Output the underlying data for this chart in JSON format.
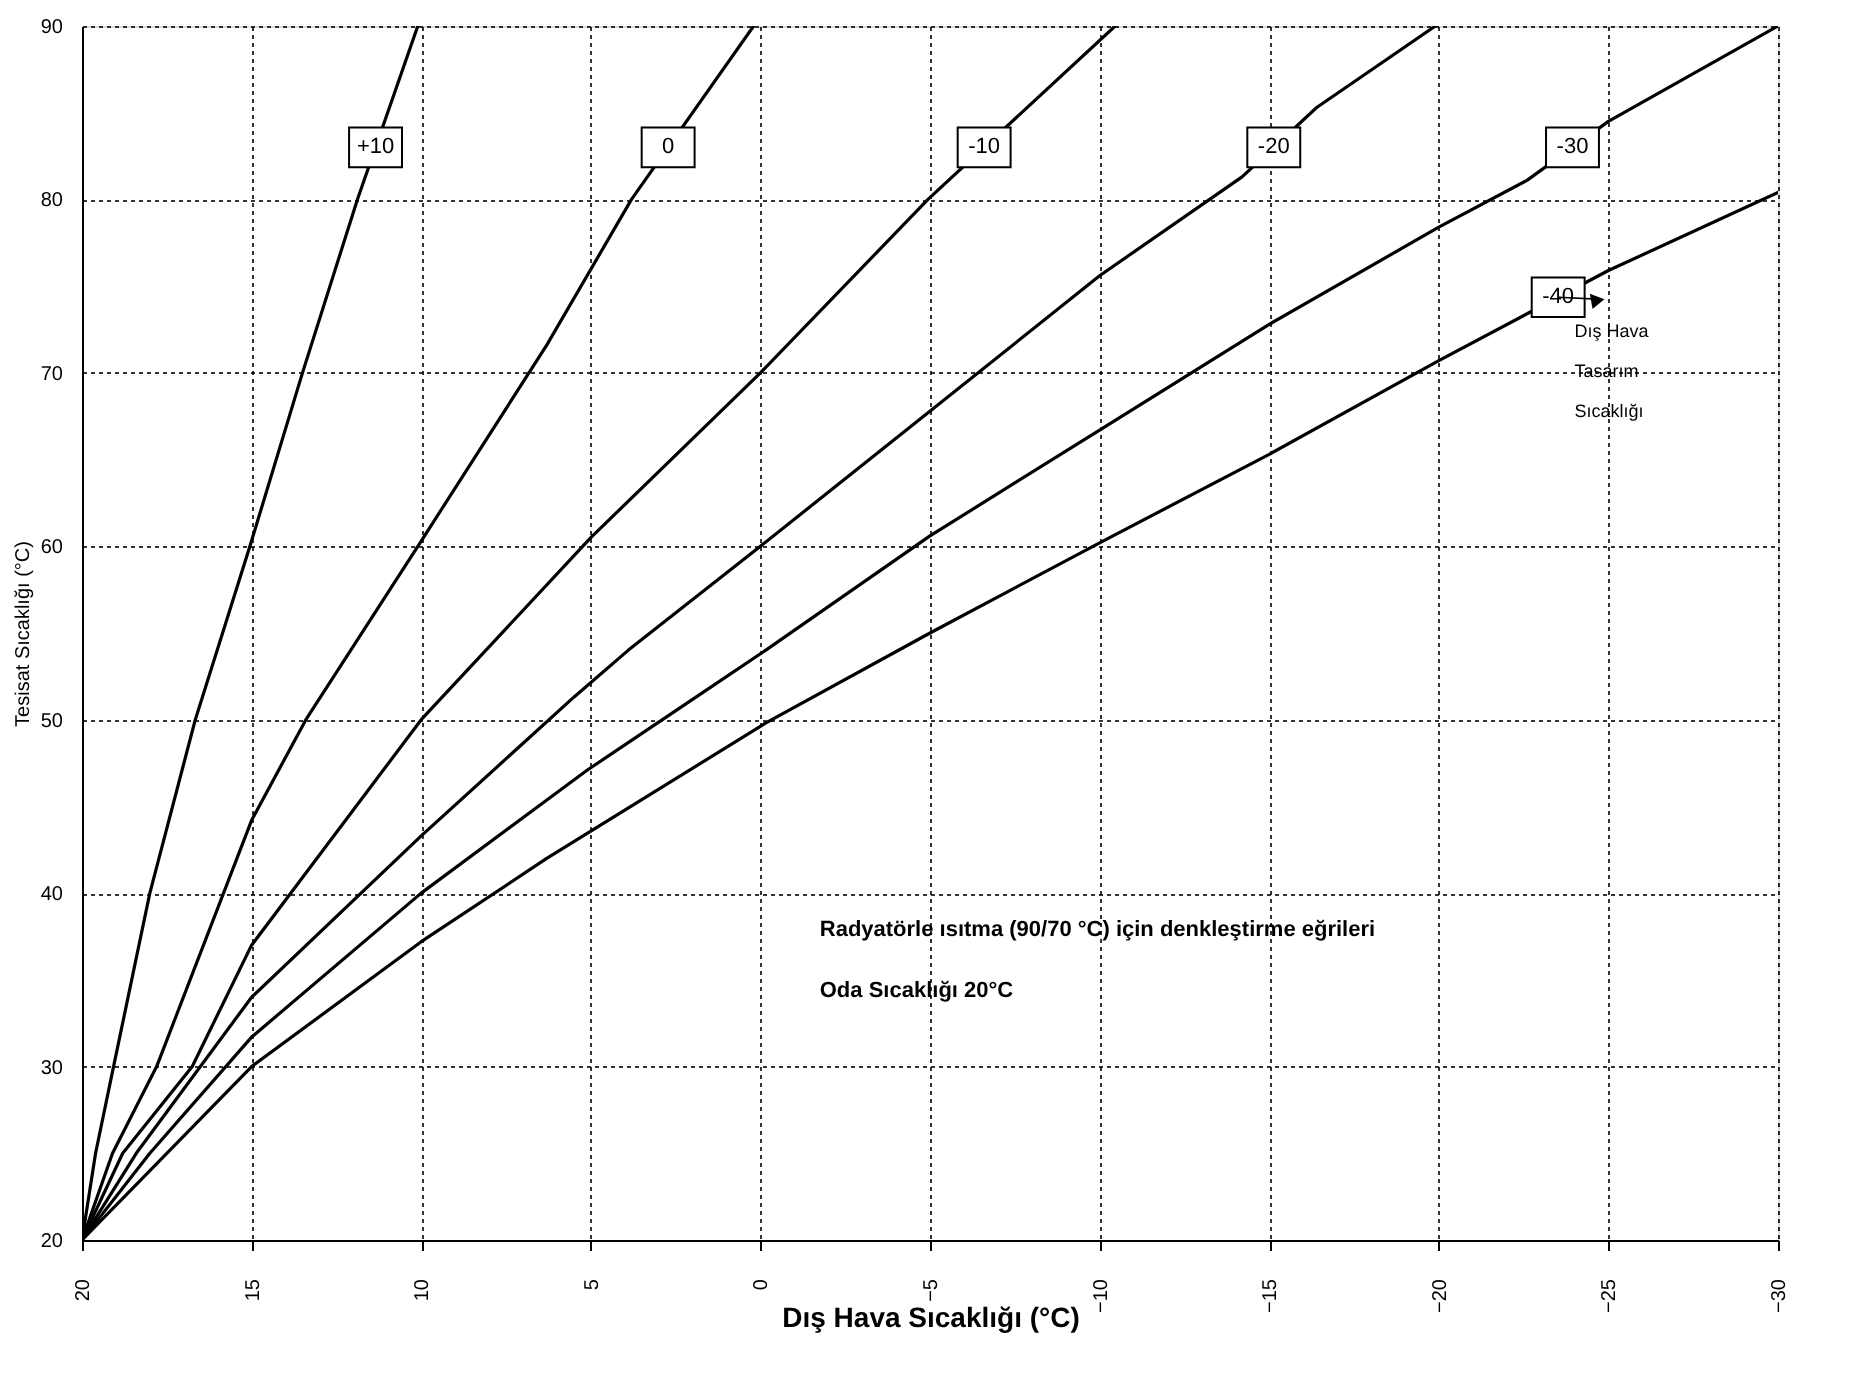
{
  "chart_data": {
    "type": "line",
    "xlabel": "Dış Hava Sıcaklığı (°C)",
    "ylabel": "Tesisat Sıcaklığı (°C)",
    "xlim": [
      20,
      -30
    ],
    "xticks": [
      20,
      15,
      10,
      5,
      0,
      -5,
      -10,
      -15,
      -20,
      -25,
      -30
    ],
    "ylim": [
      20,
      90
    ],
    "yticks": [
      20,
      30,
      40,
      50,
      60,
      70,
      80,
      90
    ],
    "grid": true,
    "marker": "none",
    "line_style": "solid",
    "series": [
      {
        "name": "+10",
        "color": "#000000",
        "x": [
          20,
          19.6,
          19.07,
          18.0,
          16.66,
          15.05,
          13.5,
          11.88,
          10.1
        ],
        "values": [
          20,
          25,
          30,
          40,
          50,
          60,
          70,
          80,
          90
        ]
      },
      {
        "name": "0",
        "color": "#000000",
        "x": [
          20,
          19.1,
          17.8,
          15,
          13.4,
          10,
          6.3,
          3.8,
          0.2
        ],
        "values": [
          20,
          25,
          30,
          44.2,
          50,
          60.3,
          71.6,
          80,
          90
        ]
      },
      {
        "name": "-10",
        "color": "#000000",
        "x": [
          20,
          18.8,
          16.75,
          15,
          10,
          5,
          0,
          -4.94,
          -10.46
        ],
        "values": [
          20,
          25,
          30,
          37,
          50,
          60.5,
          70,
          80,
          90
        ]
      },
      {
        "name": "-20",
        "color": "#000000",
        "x": [
          20,
          18.4,
          15,
          10,
          5.5,
          3.9,
          0,
          -5.2,
          -10,
          -14.2,
          -16.4,
          -19.9
        ],
        "values": [
          20,
          25,
          34,
          43.3,
          51.3,
          54,
          60,
          68.1,
          75.6,
          81.3,
          85.3,
          90
        ]
      },
      {
        "name": "-30",
        "color": "#000000",
        "x": [
          20,
          18.0,
          15,
          10,
          5.1,
          1.9,
          -0.15,
          -5,
          -10,
          -15,
          -20,
          -22.6,
          -25,
          -30
        ],
        "values": [
          20,
          25,
          31.7,
          40,
          47.1,
          51.3,
          54,
          60.6,
          66.7,
          72.8,
          78.4,
          81.1,
          84.5,
          90
        ]
      },
      {
        "name": "-40",
        "color": "#000000",
        "x": [
          20,
          17.5,
          15,
          10,
          6.3,
          -0.15,
          -5,
          -10,
          -15,
          -20,
          -25,
          -30
        ],
        "values": [
          20,
          25,
          30,
          37.2,
          42,
          49.8,
          55,
          60.2,
          65.3,
          70.7,
          75.9,
          80.4
        ]
      }
    ],
    "annotations": [
      "Radyatörle ısıtma (90/70 °C) için denkleştirme eğrileri",
      "Oda Sıcaklığı 20°C",
      "Dış Hava Tasarım Sıcaklığı"
    ]
  }
}
